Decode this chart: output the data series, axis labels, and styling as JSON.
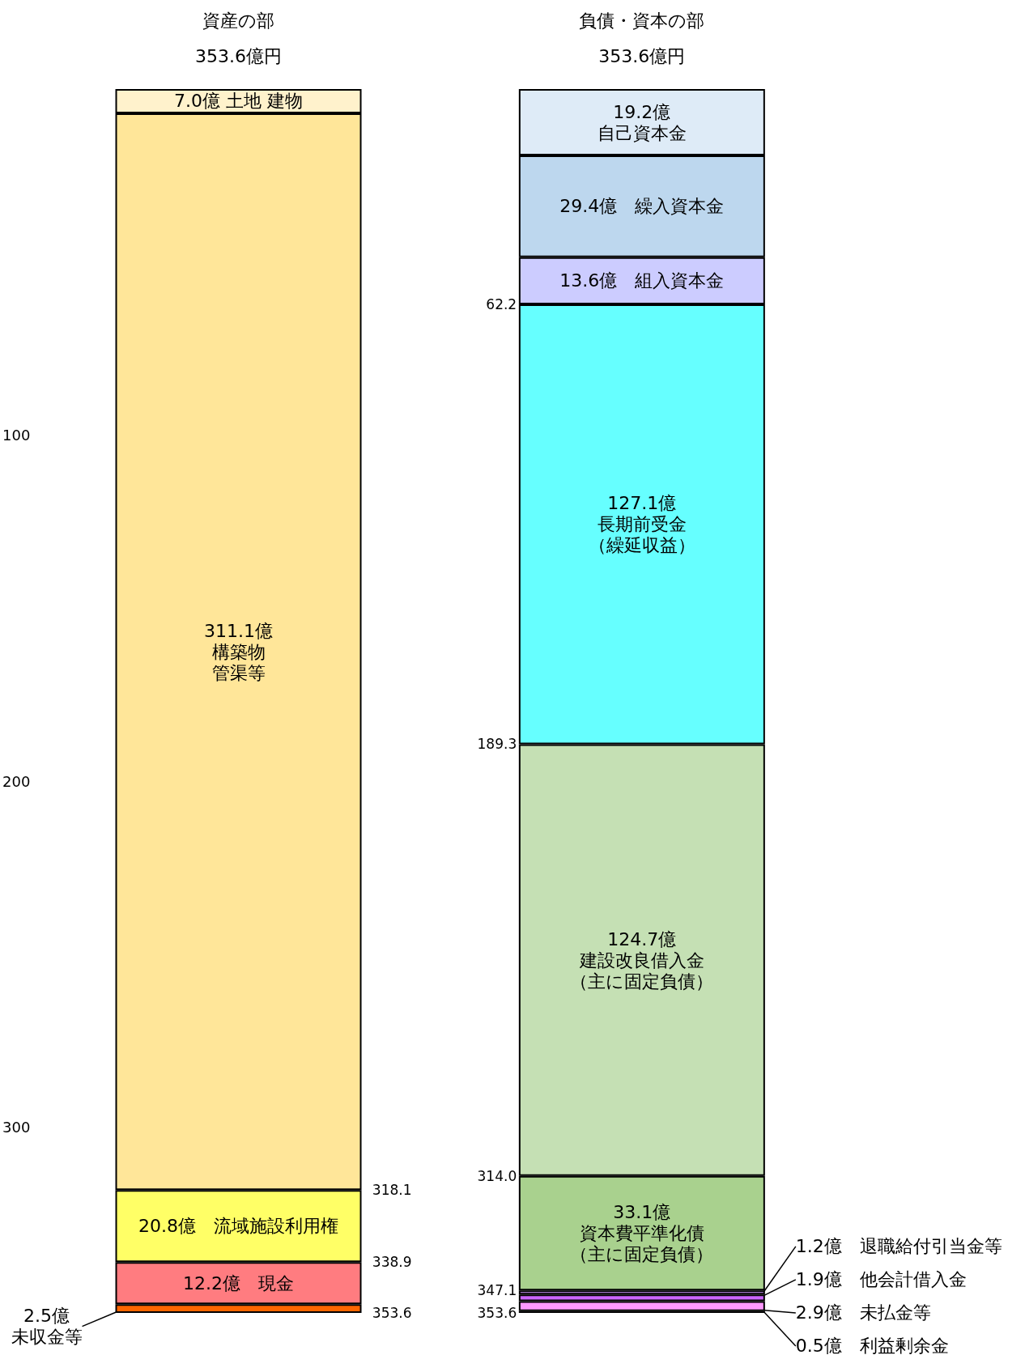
{
  "chart_data": {
    "type": "bar",
    "stacked": true,
    "categories": [
      "資産の部",
      "負債・資本の部"
    ],
    "totals": [
      "353.6億円",
      "353.6億円"
    ],
    "ylim": [
      353.6,
      0
    ],
    "yticks": [
      100,
      200,
      300
    ],
    "grid": false,
    "y2lim": [
      353.6,
      0
    ],
    "y2ticks": [
      318.1,
      338.9,
      353.6
    ],
    "y3lim": [
      353.6,
      0
    ],
    "y3ticks": [
      62.2,
      189.3,
      {
        "value": 314,
        "label": "314.0"
      },
      347.1,
      353.6
    ],
    "series": [
      {
        "color": "#fff2cc",
        "values": [
          7.0,
          null
        ],
        "value_labels": [
          "7.0億 土地 建物",
          null
        ]
      },
      {
        "color": "#ffe699",
        "values": [
          311.1,
          null
        ],
        "value_labels": [
          "311.1億構築物管渠等",
          null
        ]
      },
      {
        "color": "#ffff66",
        "values": [
          20.8,
          null
        ],
        "value_labels": [
          "20.8億　流域施設利用権",
          null
        ]
      },
      {
        "color": "#ff7c80",
        "values": [
          12.2,
          null
        ],
        "value_labels": [
          "12.2億　現金",
          null
        ]
      },
      {
        "color": "#ff6600",
        "values": [
          2.5,
          null
        ],
        "value_labels": [
          "2.5億未収金等",
          null
        ]
      },
      {
        "color": "#deebf7",
        "values": [
          null,
          19.2
        ],
        "value_labels": [
          null,
          "19.2億自己資本金"
        ]
      },
      {
        "color": "#bdd7ee",
        "values": [
          null,
          29.4
        ],
        "value_labels": [
          null,
          "29.4億　繰入資本金"
        ]
      },
      {
        "color": "#ccccff",
        "values": [
          null,
          13.6
        ],
        "value_labels": [
          null,
          "13.6億　組入資本金"
        ]
      },
      {
        "color": "#66ffff",
        "values": [
          null,
          127.1
        ],
        "value_labels": [
          null,
          "127.1億長期前受金（繰延収益）"
        ]
      },
      {
        "color": "#c5e0b4",
        "values": [
          null,
          124.7
        ],
        "value_labels": [
          null,
          "124.7億建設改良借入金（主に固定負債）"
        ]
      },
      {
        "color": "#a9d18e",
        "values": [
          null,
          33.1
        ],
        "value_labels": [
          null,
          "33.1億資本費平準化債（主に固定負債）"
        ]
      },
      {
        "color": "#cc99ff",
        "values": [
          null,
          1.2
        ],
        "value_labels": [
          null,
          "1.2億　退職給付引当金等"
        ]
      },
      {
        "color": "#cc66ff",
        "values": [
          null,
          1.9
        ],
        "value_labels": [
          null,
          "1.9億　他会計借入金"
        ]
      },
      {
        "color": "#ff99ff",
        "values": [
          null,
          2.9
        ],
        "value_labels": [
          null,
          "2.9億　未払金等"
        ]
      },
      {
        "color": "#f4b183",
        "values": [
          null,
          0.5
        ],
        "value_labels": [
          null,
          "0.5億　利益剰余金"
        ]
      }
    ]
  }
}
